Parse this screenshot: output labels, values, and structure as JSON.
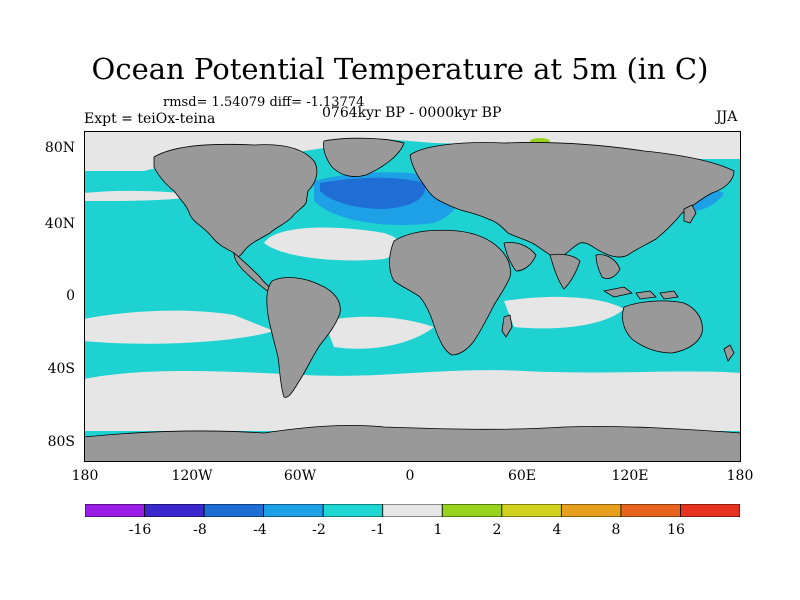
{
  "title": "Ocean Potential Temperature at 5m (in C)",
  "stats": "rmsd= 1.54079 diff= -1.13774",
  "experiment": "Expt = teiOx-teina",
  "period": "0764kyr BP - 0000kyr BP",
  "season": "JJA",
  "axes": {
    "lat_labels": [
      "80N",
      "40N",
      "0",
      "40S",
      "80S"
    ],
    "lon_labels": [
      "180",
      "120W",
      "60W",
      "0",
      "60E",
      "120E",
      "180"
    ]
  },
  "colorbar": {
    "colors": [
      "#9a1ee6",
      "#3b28cc",
      "#1e6ed6",
      "#1ea0e6",
      "#1ed6d2",
      "#e6e6e6",
      "#96d21e",
      "#d2d21e",
      "#e6a01e",
      "#e6641e",
      "#e6321e"
    ],
    "tick_labels": [
      "-16",
      "-8",
      "-4",
      "-2",
      "-1",
      "1",
      "2",
      "4",
      "8",
      "16"
    ]
  },
  "colors": {
    "land": "#999999",
    "ocean_base": "#1ed2d2",
    "near_zero": "#e6e6e6",
    "cool": "#1ea0e6",
    "cold": "#1e6ed6",
    "warm": "#96d21e",
    "hot": "#d2c81e"
  }
}
